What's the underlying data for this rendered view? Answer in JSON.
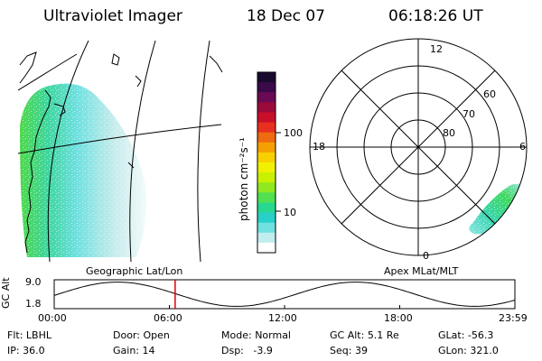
{
  "header": {
    "title": "Ultraviolet Imager",
    "date": "18 Dec 07",
    "time": "06:18:26 UT"
  },
  "colorbar": {
    "unit_label": "photon cm⁻²s⁻¹",
    "ticks": [
      {
        "value": 10,
        "label": "10"
      },
      {
        "value": 100,
        "label": "100"
      }
    ],
    "colors_top_to_bottom": [
      "#1a0a2e",
      "#3a0a4a",
      "#6a0a55",
      "#9a0a3a",
      "#c8102a",
      "#e83020",
      "#f06a10",
      "#f5a000",
      "#f8d000",
      "#f0f000",
      "#c8f000",
      "#90e820",
      "#50e050",
      "#28d890",
      "#28d0c8",
      "#70e0e0",
      "#c0eeee",
      "#ffffff"
    ]
  },
  "map_labels": {
    "left": "Geographic Lat/Lon",
    "right": "Apex MLat/MLT"
  },
  "polar": {
    "top_label": "12",
    "bottom_label": "0",
    "left_label": "18",
    "right_label": "6",
    "ring_labels": [
      "60",
      "70",
      "80"
    ]
  },
  "altitude_plot": {
    "ylabel": "GC Alt",
    "ymax_label": "9.0",
    "ymin_label": "1.8",
    "x_ticks": [
      "00:00",
      "06:00",
      "12:00",
      "18:00",
      "23:59"
    ],
    "current_marker_hours": 6.3
  },
  "status": {
    "flt": {
      "label": "Flt:",
      "value": "LBHL"
    },
    "ip": {
      "label": "IP:",
      "value": "36.0"
    },
    "door": {
      "label": "Door:",
      "value": "Open"
    },
    "gain": {
      "label": "Gain:",
      "value": "14"
    },
    "mode": {
      "label": "Mode:",
      "value": "Normal"
    },
    "dsp": {
      "label": "Dsp:",
      "value": "-3.9"
    },
    "gcalt": {
      "label": "GC Alt:",
      "value": "5.1 Re"
    },
    "seq": {
      "label": "Seq:",
      "value": "39"
    },
    "glat": {
      "label": "GLat:",
      "value": "-56.3"
    },
    "glon": {
      "label": "GLon:",
      "value": "321.0"
    }
  }
}
